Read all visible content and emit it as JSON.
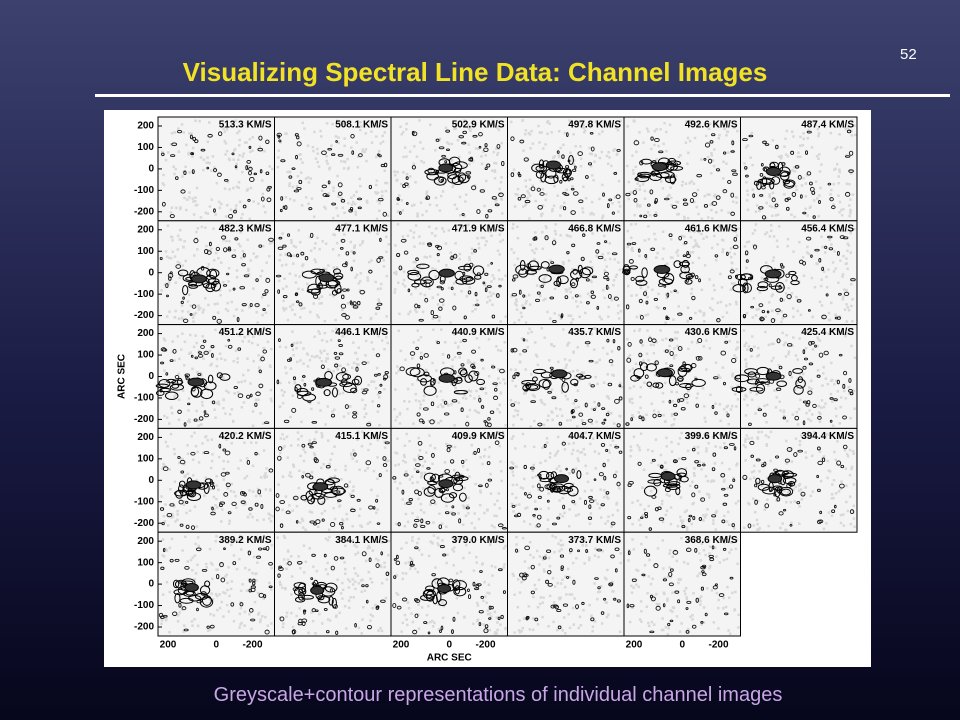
{
  "slide_number": "52",
  "title": "Visualizing Spectral Line Data: Channel Images",
  "figure": {
    "y_axis_label": "ARC SEC",
    "x_axis_label": "ARC SEC",
    "y_tick_labels": [
      "200",
      "100",
      "0",
      "-100",
      "-200"
    ],
    "x_tick_labels": [
      "200",
      "0",
      "-200"
    ],
    "panels": [
      "513.3 KM/S",
      "508.1 KM/S",
      "502.9 KM/S",
      "497.8 KM/S",
      "492.6 KM/S",
      "487.4 KM/S",
      "482.3 KM/S",
      "477.1 KM/S",
      "471.9 KM/S",
      "466.8 KM/S",
      "461.6 KM/S",
      "456.4 KM/S",
      "451.2 KM/S",
      "446.1 KM/S",
      "440.9 KM/S",
      "435.7 KM/S",
      "430.6 KM/S",
      "425.4 KM/S",
      "420.2 KM/S",
      "415.1 KM/S",
      "409.9 KM/S",
      "404.7 KM/S",
      "399.6 KM/S",
      "394.4 KM/S",
      "389.2 KM/S",
      "384.1 KM/S",
      "379.0 KM/S",
      "373.7 KM/S",
      "368.6 KM/S"
    ]
  },
  "caption": "Greyscale+contour representations of individual channel images"
}
